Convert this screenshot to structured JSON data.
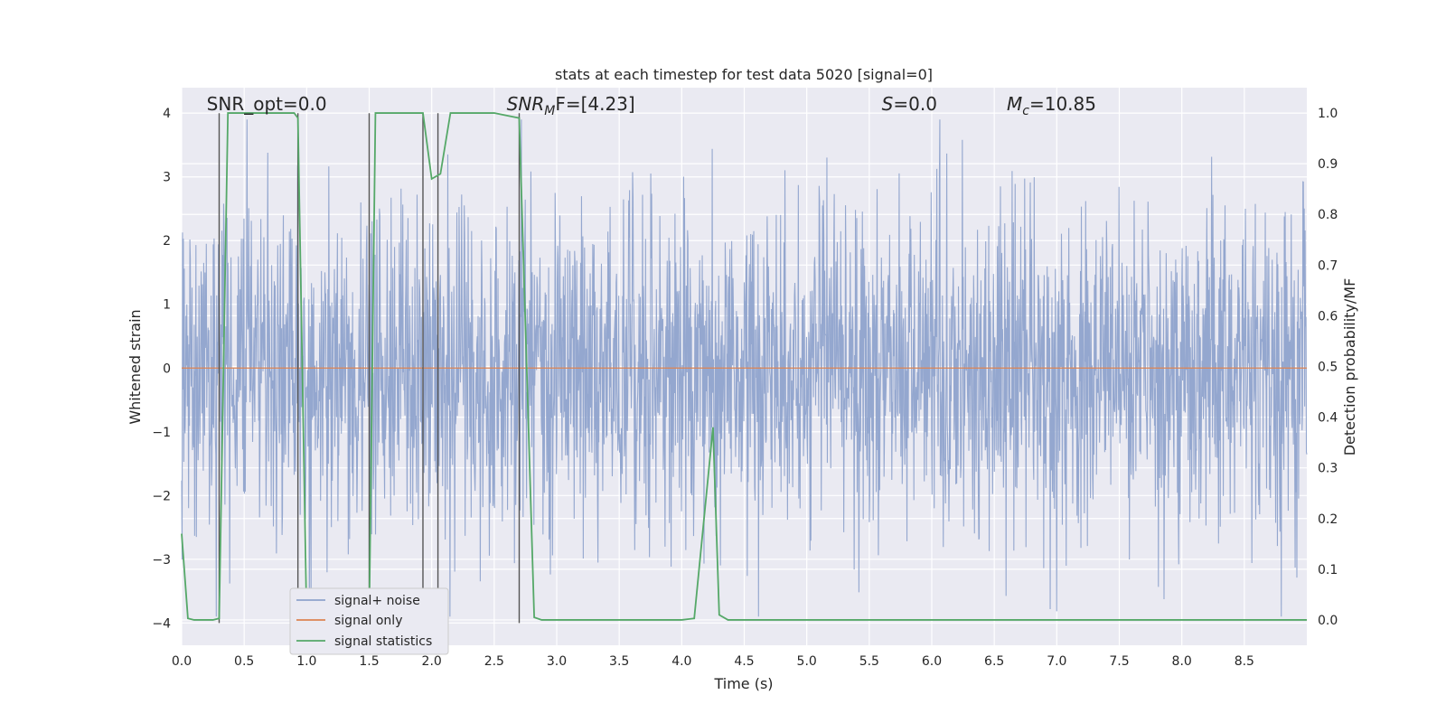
{
  "chart_data": {
    "type": "line",
    "title": "stats at each timestep for test data 5020 [signal=0]",
    "xlabel": "Time (s)",
    "ylabel_left": "Whitened strain",
    "ylabel_right": "Detection probability/MF",
    "xlim": [
      0.0,
      9.0
    ],
    "ylim_left": [
      -4.35,
      4.4
    ],
    "ylim_right": [
      -0.05,
      1.05
    ],
    "x_ticks": [
      0.0,
      0.5,
      1.0,
      1.5,
      2.0,
      2.5,
      3.0,
      3.5,
      4.0,
      4.5,
      5.0,
      5.5,
      6.0,
      6.5,
      7.0,
      7.5,
      8.0,
      8.5
    ],
    "x_tick_labels": [
      "0.0",
      "0.5",
      "1.0",
      "1.5",
      "2.0",
      "2.5",
      "3.0",
      "3.5",
      "4.0",
      "4.5",
      "5.0",
      "5.5",
      "6.0",
      "6.5",
      "7.0",
      "7.5",
      "8.0",
      "8.5"
    ],
    "y_ticks_left": [
      -4,
      -3,
      -2,
      -1,
      0,
      1,
      2,
      3,
      4
    ],
    "y_tick_labels_left": [
      "−4",
      "−3",
      "−2",
      "−1",
      "0",
      "1",
      "2",
      "3",
      "4"
    ],
    "y_ticks_right": [
      0.0,
      0.1,
      0.2,
      0.3,
      0.4,
      0.5,
      0.6,
      0.7,
      0.8,
      0.9,
      1.0
    ],
    "y_tick_labels_right": [
      "0.0",
      "0.1",
      "0.2",
      "0.3",
      "0.4",
      "0.5",
      "0.6",
      "0.7",
      "0.8",
      "0.9",
      "1.0"
    ],
    "grid": true,
    "legend_position": "lower-left",
    "annotations": [
      {
        "id": "snr-opt",
        "text": "SNR_opt=0.0",
        "x": 0.2,
        "y": 4.1
      },
      {
        "id": "snr-mf",
        "text": "SNR",
        "sub": "M",
        "rest": "F=[4.23]",
        "italic_main": true,
        "x": 2.6,
        "y": 4.1
      },
      {
        "id": "s-value",
        "text": "S",
        "sub": "",
        "rest": "=0.0",
        "italic_main": true,
        "x": 5.6,
        "y": 4.1
      },
      {
        "id": "mc-value",
        "text": "M",
        "sub": "c",
        "rest": "=10.85",
        "italic_main": true,
        "x": 6.6,
        "y": 4.1
      }
    ],
    "vertical_lines": [
      0.3,
      0.93,
      1.5,
      1.93,
      2.05,
      2.7
    ],
    "series": [
      {
        "name": "signal+ noise",
        "axis": "left",
        "color": "#8fa3cc",
        "kind": "noise",
        "x_range": [
          0.0,
          9.0
        ],
        "typical_amplitude": 1.6,
        "peak_amplitude": 3.9
      },
      {
        "name": "signal only",
        "axis": "left",
        "color": "#dd8452",
        "kind": "line",
        "x": [
          0.0,
          9.0
        ],
        "y": [
          0.0,
          0.0
        ]
      },
      {
        "name": "signal statistics",
        "axis": "right",
        "color": "#55a868",
        "kind": "line",
        "x": [
          0.0,
          0.05,
          0.1,
          0.2,
          0.25,
          0.3,
          0.37,
          0.5,
          0.7,
          0.9,
          0.93,
          1.0,
          1.5,
          1.55,
          1.7,
          1.85,
          1.93,
          2.0,
          2.07,
          2.15,
          2.3,
          2.5,
          2.7,
          2.82,
          2.88,
          3.0,
          3.5,
          4.0,
          4.1,
          4.25,
          4.3,
          4.37,
          4.5,
          5.0,
          6.0,
          7.0,
          8.0,
          9.0
        ],
        "y": [
          0.17,
          0.003,
          0.0,
          0.0,
          0.0,
          0.003,
          1.0,
          1.0,
          1.0,
          1.0,
          0.99,
          0.0,
          0.0,
          1.0,
          1.0,
          1.0,
          1.0,
          0.87,
          0.88,
          1.0,
          1.0,
          1.0,
          0.99,
          0.005,
          0.0,
          0.0,
          0.0,
          0.0,
          0.003,
          0.38,
          0.01,
          0.0,
          0.0,
          0.0,
          0.0,
          0.0,
          0.0,
          0.0
        ]
      }
    ]
  }
}
